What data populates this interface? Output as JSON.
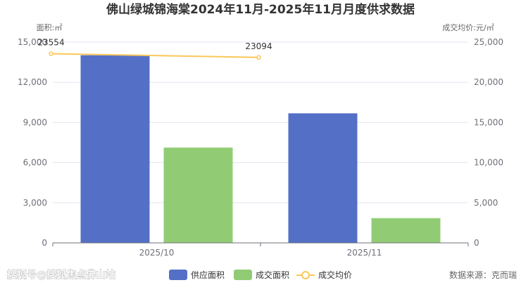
{
  "chart_data": {
    "type": "bar",
    "title": "佛山绿城锦海棠2024年11月-2025年11月月度供求数据",
    "categories": [
      "2025/10",
      "2025/11"
    ],
    "y_left": {
      "label": "面积:㎡",
      "range": [
        0,
        15000
      ],
      "ticks": [
        "0",
        "3,000",
        "6,000",
        "9,000",
        "12,000",
        "15,000"
      ]
    },
    "y_right": {
      "label": "成交均价:元/㎡",
      "range": [
        0,
        25000
      ],
      "ticks": [
        "0",
        "5,000",
        "10,000",
        "15,000",
        "20,000",
        "25,000"
      ]
    },
    "series": [
      {
        "name": "供应面积",
        "type": "bar",
        "axis": "left",
        "color": "#5470c6",
        "values": [
          14020,
          9680
        ]
      },
      {
        "name": "成交面积",
        "type": "bar",
        "axis": "left",
        "color": "#91cc75",
        "values": [
          7120,
          1850
        ]
      },
      {
        "name": "成交均价",
        "type": "line",
        "axis": "right",
        "color": "#fac858",
        "values": [
          23554,
          23094
        ],
        "labels": [
          "23554",
          "23094"
        ]
      }
    ],
    "grid": "horizontal",
    "legend_position": "bottom-center"
  },
  "watermark_left": "搜狐号@搜狐焦点佛山站",
  "source_text": "数据来源：克而瑞"
}
